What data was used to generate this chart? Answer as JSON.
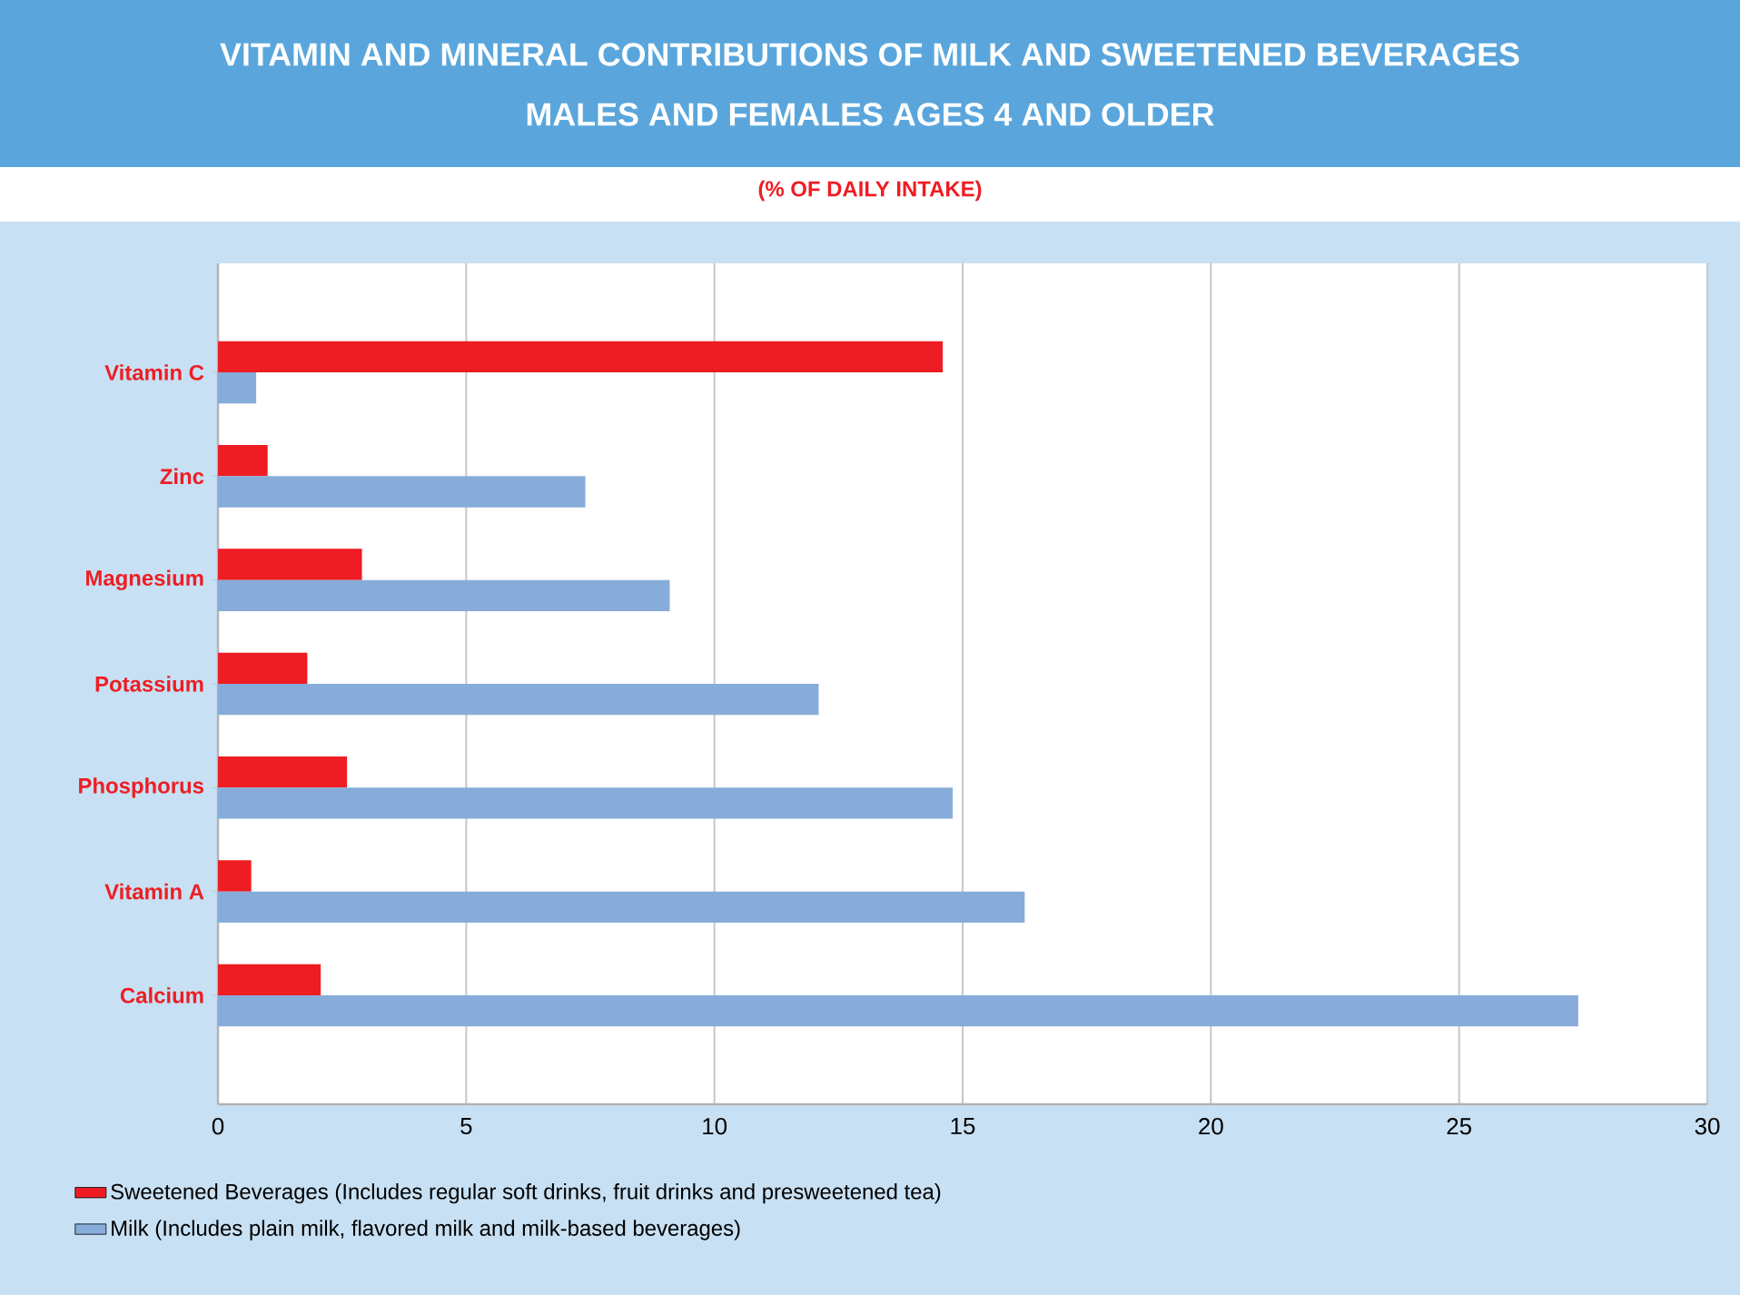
{
  "chart_data": {
    "type": "bar",
    "orientation": "horizontal",
    "title": "VITAMIN AND MINERAL CONTRIBUTIONS OF MILK AND SWEETENED BEVERAGES",
    "subtitle": "MALES AND FEMALES AGES 4 AND OLDER",
    "xlabel": "(% OF DAILY INTAKE)",
    "categories": [
      "Vitamin C",
      "Zinc",
      "Magnesium",
      "Potassium",
      "Phosphorus",
      "Vitamin A",
      "Calcium"
    ],
    "series": [
      {
        "name": "Sweetened Beverages (Includes regular soft drinks, fruit drinks and presweetened tea)",
        "color": "#ee1d23",
        "values": [
          14.6,
          1.0,
          2.9,
          1.8,
          2.6,
          0.67,
          2.07
        ]
      },
      {
        "name": "Milk (Includes plain milk, flavored milk and milk-based beverages)",
        "color": "#87acd9",
        "values": [
          0.77,
          7.4,
          9.1,
          12.1,
          14.8,
          16.25,
          27.4
        ]
      }
    ],
    "xlim": [
      0,
      30
    ],
    "xticks": [
      0,
      5,
      10,
      15,
      20,
      25,
      30
    ],
    "grid": "x",
    "legend": "bottom"
  }
}
